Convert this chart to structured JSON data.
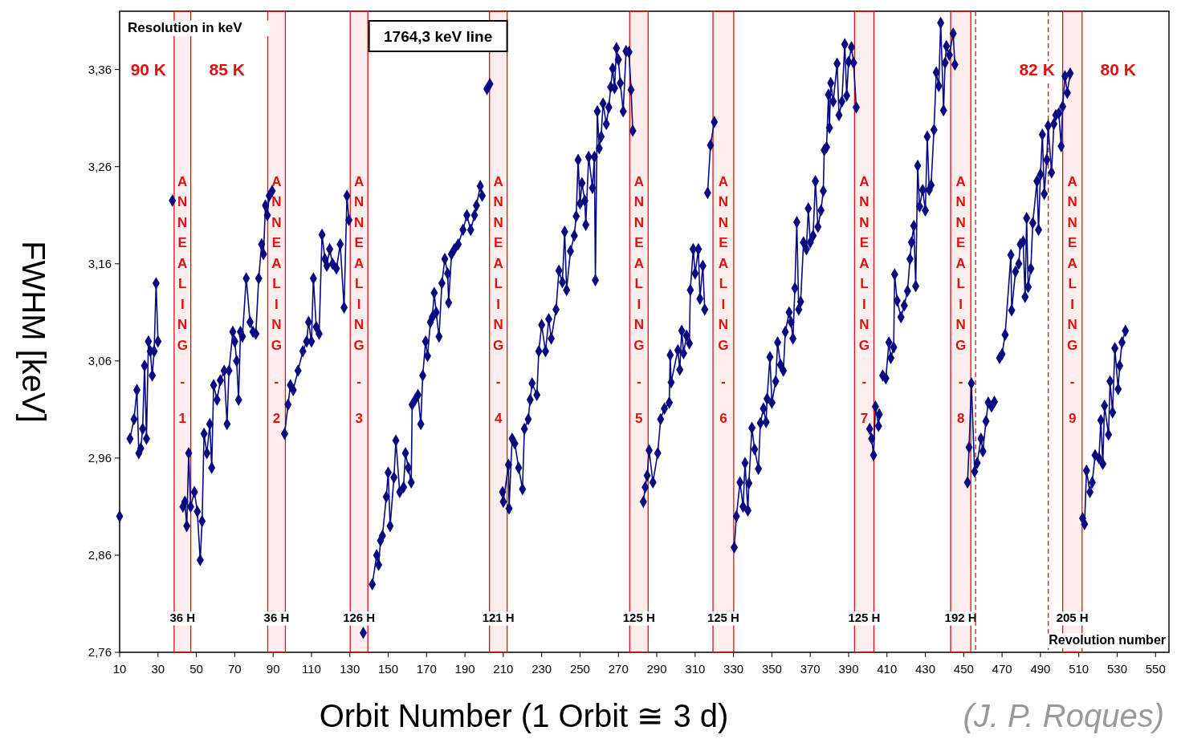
{
  "chart_data": {
    "type": "line",
    "title": "Resolution in keV",
    "subtitle": "1764,3 keV line",
    "xlabel": "Orbit Number (1 Orbit ≅ 3 d)",
    "ylabel": "FWHM [keV]",
    "xlim": [
      10,
      557
    ],
    "xticks": [
      10,
      30,
      50,
      70,
      90,
      110,
      130,
      150,
      170,
      190,
      210,
      230,
      250,
      270,
      290,
      310,
      330,
      350,
      370,
      390,
      410,
      430,
      450,
      470,
      490,
      510,
      530,
      550
    ],
    "ylim": [
      2.76,
      3.42
    ],
    "yticks": [
      {
        "value": 2.76,
        "label": "2,76"
      },
      {
        "value": 2.86,
        "label": "2,86"
      },
      {
        "value": 2.96,
        "label": "2,96"
      },
      {
        "value": 3.06,
        "label": "3,06"
      },
      {
        "value": 3.16,
        "label": "3,16"
      },
      {
        "value": 3.26,
        "label": "3,26"
      },
      {
        "value": 3.36,
        "label": "3,36"
      }
    ],
    "marker": "diamond",
    "line_style": "solid",
    "grid": false,
    "series": [
      {
        "color": "#0a0a80",
        "x": [
          10,
          12,
          15.4,
          17.5,
          19,
          20,
          21,
          22,
          23,
          24,
          25,
          26,
          27,
          28,
          29,
          30,
          33,
          37.5,
          40,
          43,
          44,
          45,
          46,
          47,
          49,
          50.5,
          52,
          53,
          54,
          55.5,
          57,
          58,
          59,
          60.8,
          62.5,
          64.5,
          66,
          67,
          69,
          70,
          71,
          72,
          73,
          74,
          76,
          78,
          79.5,
          81,
          82.5,
          84,
          85,
          86,
          87,
          88,
          89.5,
          92,
          96,
          97.8,
          99,
          100.5,
          103,
          105.5,
          107.5,
          108.5,
          110,
          111,
          112.5,
          114,
          115.5,
          117,
          118,
          119.5,
          121,
          123,
          125,
          127,
          128.5,
          129.5,
          133,
          137,
          139,
          141.7,
          144,
          145,
          146,
          147,
          149,
          150,
          151,
          153,
          154,
          156,
          158,
          159,
          160.5,
          162,
          162.5,
          164,
          165.5,
          167,
          168,
          169.5,
          170.5,
          172,
          173,
          174,
          175,
          176.5,
          178,
          179.5,
          181,
          181.5,
          183,
          184.5,
          186.5,
          189,
          191,
          193,
          195,
          196,
          198,
          199,
          200.5,
          201.5,
          203,
          206,
          209.6,
          210,
          212.7,
          213,
          214.6,
          216,
          218,
          220,
          221,
          223,
          224,
          225,
          227.5,
          228.5,
          230,
          232,
          233.7,
          235,
          237.5,
          239,
          240.8,
          242,
          243,
          245,
          247,
          248,
          249,
          250,
          251,
          252.5,
          253,
          254.5,
          256.5,
          257.5,
          258,
          259,
          260,
          261,
          262,
          263.7,
          265,
          266,
          267,
          268,
          269,
          270,
          271,
          272.5,
          274,
          275.5,
          276.6,
          277.5,
          280,
          283,
          284,
          285,
          286,
          288,
          290.5,
          292,
          294,
          296.5,
          297,
          297.5,
          301,
          302,
          303,
          304,
          305.5,
          307,
          307.5,
          309,
          310,
          311.7,
          312.5,
          314,
          315,
          315.8,
          316.5,
          318,
          320,
          325,
          330.4,
          331.5,
          333.4,
          335,
          336,
          337.5,
          338,
          339.6,
          341,
          343,
          344,
          345.6,
          347,
          347.5,
          349,
          350,
          352,
          353,
          354.5,
          356,
          357,
          359,
          360,
          361,
          362,
          363,
          364,
          365,
          366.5,
          368,
          369,
          370,
          371.5,
          372.7,
          374,
          375.6,
          376.8,
          377.3,
          378.5,
          379.5,
          380,
          380.7,
          382,
          384,
          385,
          386.5,
          388,
          389,
          390,
          391.5,
          392.6,
          394,
          398,
          401,
          402,
          403,
          404,
          405.6,
          406,
          407,
          407.8,
          409.4,
          411,
          412,
          413.5,
          414,
          415.3,
          417.3,
          419,
          420.7,
          422,
          422.8,
          424,
          425,
          426,
          427,
          428.6,
          430,
          431,
          432,
          433,
          434.5,
          435.7,
          437,
          438,
          439.5,
          440.3,
          441,
          442.5,
          444.5,
          445.4,
          449,
          452,
          452.8,
          454,
          455.7,
          457,
          459,
          460,
          461.6,
          462.8,
          464.5,
          466,
          467.5,
          468.7,
          470,
          471.6,
          474.6,
          475,
          477,
          478.7,
          479.5,
          481,
          482,
          482.8,
          483.6,
          485,
          486,
          488.2,
          489,
          490,
          491,
          492,
          493.3,
          494,
          495.8,
          497,
          498,
          499.6,
          500.8,
          501.6,
          502.8,
          504,
          505.5,
          508,
          512,
          513,
          514,
          515.8,
          517,
          518.5,
          520.5,
          521.5,
          522.5,
          523.4,
          525.5,
          526.3,
          527.6,
          528.8,
          530.5,
          531.3,
          532.5,
          534.3
        ],
        "values": [
          2.9,
          null,
          2.98,
          3.0,
          3.03,
          2.965,
          2.97,
          2.99,
          3.055,
          2.98,
          3.08,
          3.07,
          3.045,
          3.07,
          3.14,
          3.08,
          null,
          3.225,
          null,
          2.91,
          2.915,
          2.89,
          2.965,
          2.91,
          2.925,
          2.905,
          2.855,
          2.895,
          2.985,
          2.965,
          2.995,
          2.95,
          3.035,
          3.02,
          3.04,
          3.05,
          2.995,
          3.05,
          3.09,
          3.08,
          3.06,
          3.02,
          3.09,
          3.085,
          3.145,
          3.1,
          3.09,
          3.088,
          3.145,
          3.18,
          3.17,
          3.22,
          3.21,
          3.23,
          3.235,
          null,
          2.985,
          3.015,
          3.035,
          3.03,
          3.05,
          3.07,
          3.08,
          3.1,
          3.08,
          3.145,
          3.095,
          3.088,
          3.19,
          3.165,
          3.158,
          3.175,
          3.16,
          3.155,
          3.18,
          3.115,
          3.23,
          3.205,
          null,
          2.78,
          null,
          2.83,
          2.86,
          2.85,
          2.875,
          2.88,
          2.92,
          2.945,
          2.89,
          2.94,
          2.978,
          2.925,
          2.93,
          2.965,
          2.95,
          2.935,
          3.015,
          3.02,
          3.025,
          2.995,
          3.045,
          3.08,
          3.065,
          3.1,
          3.105,
          3.13,
          3.11,
          3.085,
          3.14,
          3.165,
          3.15,
          3.12,
          3.17,
          3.175,
          3.18,
          3.195,
          3.21,
          3.195,
          3.21,
          3.22,
          3.24,
          3.23,
          null,
          3.34,
          3.345,
          null,
          2.925,
          2.915,
          2.953,
          2.908,
          2.98,
          2.975,
          2.95,
          2.928,
          2.99,
          3.0,
          3.02,
          3.037,
          3.025,
          3.07,
          3.097,
          3.07,
          3.103,
          3.083,
          3.113,
          3.153,
          3.141,
          3.193,
          3.133,
          3.173,
          3.189,
          3.209,
          3.267,
          3.222,
          3.243,
          3.225,
          3.2,
          3.27,
          3.238,
          3.27,
          3.143,
          3.317,
          3.279,
          3.291,
          3.325,
          3.304,
          3.321,
          3.342,
          3.361,
          3.341,
          3.382,
          3.37,
          3.346,
          3.317,
          3.379,
          3.378,
          3.339,
          3.297,
          null,
          2.915,
          2.93,
          2.942,
          2.968,
          2.935,
          2.965,
          3.0,
          3.011,
          3.017,
          3.066,
          3.038,
          3.071,
          3.051,
          3.091,
          3.068,
          3.086,
          3.078,
          3.133,
          3.175,
          3.15,
          3.175,
          3.124,
          3.158,
          3.113,
          null,
          3.233,
          3.282,
          3.306,
          null,
          2.868,
          2.9,
          2.935,
          2.91,
          2.955,
          2.906,
          2.934,
          2.991,
          2.969,
          2.949,
          2.996,
          3.011,
          2.997,
          3.021,
          3.064,
          3.017,
          3.039,
          3.079,
          3.056,
          3.05,
          3.09,
          3.11,
          3.1,
          3.083,
          3.135,
          3.203,
          3.113,
          3.121,
          3.182,
          3.175,
          3.217,
          3.182,
          3.189,
          3.245,
          3.198,
          3.215,
          3.235,
          3.277,
          3.28,
          3.334,
          3.3,
          3.346,
          3.327,
          3.366,
          3.313,
          3.327,
          3.386,
          3.333,
          3.368,
          3.383,
          3.367,
          3.321,
          null,
          2.99,
          2.98,
          2.963,
          3.013,
          2.993,
          3.005,
          null,
          3.045,
          3.042,
          3.079,
          3.063,
          3.074,
          3.149,
          3.122,
          3.105,
          3.117,
          3.132,
          3.165,
          3.182,
          3.199,
          3.137,
          3.261,
          3.219,
          3.236,
          3.215,
          3.291,
          3.236,
          3.241,
          3.298,
          3.357,
          3.343,
          3.408,
          3.318,
          3.367,
          3.384,
          3.375,
          3.397,
          3.365,
          null,
          2.935,
          2.971,
          3.037,
          2.946,
          2.955,
          2.98,
          2.967,
          2.998,
          3.017,
          3.013,
          3.018,
          null,
          3.063,
          3.067,
          3.087,
          3.169,
          3.112,
          3.152,
          3.16,
          3.18,
          3.183,
          3.126,
          3.207,
          3.136,
          3.155,
          3.202,
          3.245,
          3.195,
          3.252,
          3.293,
          3.232,
          3.267,
          3.302,
          3.254,
          3.304,
          3.313,
          3.315,
          3.281,
          3.322,
          3.353,
          3.336,
          3.356,
          null,
          2.898,
          2.892,
          2.947,
          2.925,
          2.935,
          2.963,
          2.96,
          2.999,
          2.954,
          3.014,
          2.984,
          3.039,
          3.007,
          3.073,
          3.031,
          3.055,
          3.079,
          3.091
        ]
      }
    ],
    "bands": [
      {
        "axis": "x",
        "from": 38.4,
        "to": 47.1,
        "label": "ANNEALING - 1",
        "color": "#e01010"
      },
      {
        "axis": "x",
        "from": 87.2,
        "to": 96.4,
        "label": "ANNEALING - 2",
        "color": "#e01010"
      },
      {
        "axis": "x",
        "from": 130.2,
        "to": 139.4,
        "label": "ANNEALING - 3",
        "color": "#e01010"
      },
      {
        "axis": "x",
        "from": 202.8,
        "to": 212.0,
        "label": "ANNEALING - 4",
        "color": "#e01010"
      },
      {
        "axis": "x",
        "from": 275.9,
        "to": 285.5,
        "label": "ANNEALING - 5",
        "color": "#e01010"
      },
      {
        "axis": "x",
        "from": 319.3,
        "to": 330.1,
        "label": "ANNEALING - 6",
        "color": "#e01010"
      },
      {
        "axis": "x",
        "from": 393.1,
        "to": 403.2,
        "label": "ANNEALING - 7",
        "color": "#e01010"
      },
      {
        "axis": "x",
        "from": 443.2,
        "to": 453.7,
        "label": "ANNEALING - 8",
        "color": "#e01010"
      },
      {
        "axis": "x",
        "from": 501.6,
        "to": 511.7,
        "label": "ANNEALING - 9",
        "color": "#e01010"
      }
    ],
    "ref_lines": [
      {
        "axis": "x",
        "value": 456.2,
        "color": "#e01010",
        "line_style": "dashed"
      },
      {
        "axis": "x",
        "value": 494.1,
        "color": "#e01010",
        "line_style": "dashed"
      }
    ],
    "annotations": [
      "90 K",
      "85 K",
      "82 K",
      "80 K",
      "36 H",
      "36 H",
      "126 H",
      "121 H",
      "125 H",
      "125 H",
      "125 H",
      "192 H",
      "205 H",
      "Revolution number",
      "(J. P. Roques)"
    ]
  }
}
